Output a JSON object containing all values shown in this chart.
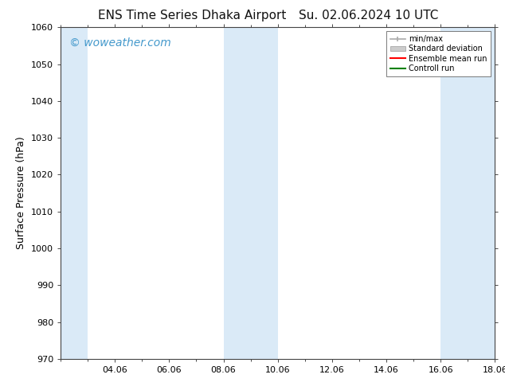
{
  "title_left": "ENS Time Series Dhaka Airport",
  "title_right": "Su. 02.06.2024 10 UTC",
  "ylabel": "Surface Pressure (hPa)",
  "ylim": [
    970,
    1060
  ],
  "yticks": [
    970,
    980,
    990,
    1000,
    1010,
    1020,
    1030,
    1040,
    1050,
    1060
  ],
  "xlim": [
    0,
    16
  ],
  "xtick_labels": [
    "04.06",
    "06.06",
    "08.06",
    "10.06",
    "12.06",
    "14.06",
    "16.06",
    "18.06"
  ],
  "xtick_positions": [
    2,
    4,
    6,
    8,
    10,
    12,
    14,
    16
  ],
  "background_color": "#ffffff",
  "plot_bg_color": "#ffffff",
  "shaded_bands": [
    {
      "x_start": 0,
      "x_end": 1,
      "color": "#daeaf7"
    },
    {
      "x_start": 6,
      "x_end": 8,
      "color": "#daeaf7"
    },
    {
      "x_start": 14,
      "x_end": 16,
      "color": "#daeaf7"
    }
  ],
  "watermark_text": "© woweather.com",
  "watermark_color": "#4499cc",
  "legend_items": [
    {
      "label": "min/max",
      "color": "#aaaaaa",
      "style": "errorbar"
    },
    {
      "label": "Standard deviation",
      "color": "#cccccc",
      "style": "fill"
    },
    {
      "label": "Ensemble mean run",
      "color": "#ff0000",
      "style": "line"
    },
    {
      "label": "Controll run",
      "color": "#008000",
      "style": "line"
    }
  ],
  "font_family": "DejaVu Sans",
  "title_fontsize": 11,
  "axis_label_fontsize": 9,
  "tick_fontsize": 8,
  "watermark_fontsize": 10,
  "legend_fontsize": 7
}
